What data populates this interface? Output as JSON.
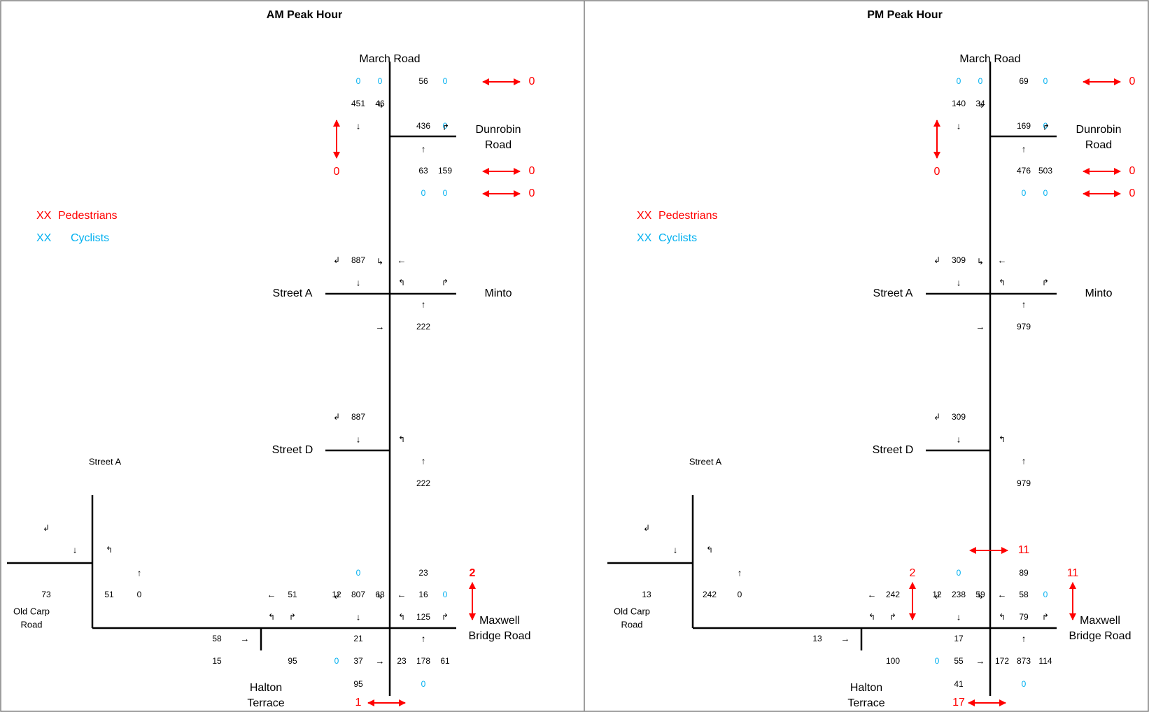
{
  "colors": {
    "pedestrian": "#ff0000",
    "cyclist": "#00b0f0",
    "vehicle": "#000000"
  },
  "panels": [
    {
      "title": "AM Peak Hour",
      "roads": {
        "march": "March Road",
        "dunrobin": [
          "Dunrobin",
          "Road"
        ],
        "street_a": "Street A",
        "minto": "Minto",
        "street_d": "Street D",
        "street_a_small": "Street A",
        "old_carp": [
          "Old Carp",
          "Road"
        ],
        "maxwell": [
          "Maxwell",
          "Bridge Road"
        ],
        "halton": [
          "Halton",
          "Terrace"
        ]
      },
      "legend": {
        "ped_code": "XX",
        "ped_label": "Pedestrians",
        "cyc_code": "XX",
        "cyc_label": "Cyclists"
      },
      "dunrobin": {
        "n_cyc_1": "0",
        "n_cyc_2": "0",
        "ne_vol": "56",
        "ne_cyc": "0",
        "ped_north": "0",
        "sb_thru": "451",
        "sb_uturn": "46",
        "east_vol": "436",
        "east_cyc": "0",
        "ped_west": "0",
        "nb_thru": "63",
        "nb_right": "159",
        "s_cyc_1": "0",
        "s_cyc_2": "0",
        "ped_south": "0"
      },
      "minto": {
        "sb_thru": "887",
        "nb_thru": "222"
      },
      "street_d": {
        "sb_thru": "887",
        "nb_thru": "222"
      },
      "old_carp": {
        "west_vol": "73",
        "nb_left": "51",
        "nb_thru": "0"
      },
      "maxwell": {
        "west_left_vol": "51",
        "n_cyc": "0",
        "ne_vol": "23",
        "ped_east": "2",
        "sb_uturn": "12",
        "sb_thru": "807",
        "sb_right": "68",
        "wb_vol": "16",
        "wb_cyc": "0",
        "wb_left": "125",
        "sb_down": "21",
        "west_in": "58",
        "halton_a": "15",
        "halton_b": "95",
        "s_cyc": "0",
        "s_left": "37",
        "nb_in": "23",
        "nb_thru": "178",
        "nb_right": "61",
        "s_bottom": "95",
        "s_cyc_2": "0",
        "ped_south": "1",
        "ped_west": "",
        "ped_north": ""
      }
    },
    {
      "title": "PM Peak Hour",
      "roads": {
        "march": "March Road",
        "dunrobin": [
          "Dunrobin",
          "Road"
        ],
        "street_a": "Street A",
        "minto": "Minto",
        "street_d": "Street D",
        "street_a_small": "Street A",
        "old_carp": [
          "Old Carp",
          "Road"
        ],
        "maxwell": [
          "Maxwell",
          "Bridge Road"
        ],
        "halton": [
          "Halton",
          "Terrace"
        ]
      },
      "legend": {
        "ped_code": "XX",
        "ped_label": "Pedestrians",
        "cyc_code": "XX",
        "cyc_label": "Cyclists"
      },
      "dunrobin": {
        "n_cyc_1": "0",
        "n_cyc_2": "0",
        "ne_vol": "69",
        "ne_cyc": "0",
        "ped_north": "0",
        "sb_thru": "140",
        "sb_uturn": "34",
        "east_vol": "169",
        "east_cyc": "0",
        "ped_west": "0",
        "nb_thru": "476",
        "nb_right": "503",
        "s_cyc_1": "0",
        "s_cyc_2": "0",
        "ped_south": "0"
      },
      "minto": {
        "sb_thru": "309",
        "nb_thru": "979"
      },
      "street_d": {
        "sb_thru": "309",
        "nb_thru": "979"
      },
      "old_carp": {
        "west_vol": "13",
        "nb_left": "242",
        "nb_thru": "0"
      },
      "maxwell": {
        "west_left_vol": "242",
        "n_cyc": "0",
        "ne_vol": "89",
        "ped_east": "11",
        "sb_uturn": "12",
        "sb_thru": "238",
        "sb_right": "59",
        "wb_vol": "58",
        "wb_cyc": "0",
        "wb_left": "79",
        "sb_down": "17",
        "west_in": "13",
        "halton_a": "",
        "halton_b": "100",
        "s_cyc": "0",
        "s_left": "55",
        "nb_in": "172",
        "nb_thru": "873",
        "nb_right": "114",
        "s_bottom": "41",
        "s_cyc_2": "0",
        "ped_south": "17",
        "ped_west": "2",
        "ped_north": "11"
      }
    }
  ]
}
